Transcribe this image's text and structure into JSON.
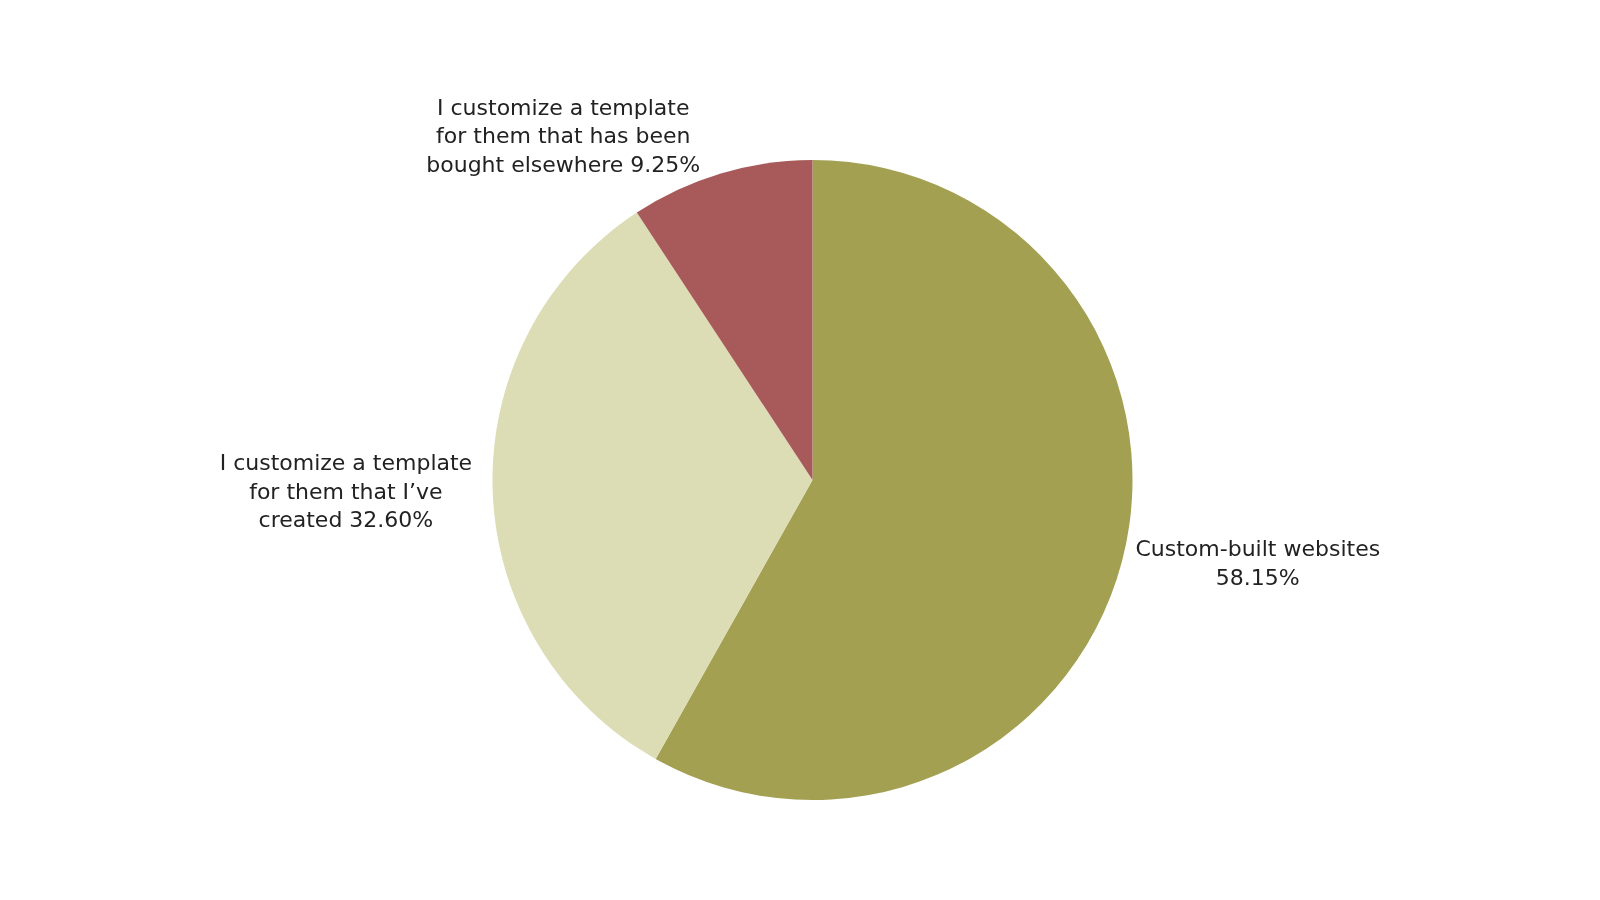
{
  "chart_data": {
    "type": "pie",
    "categories": [
      "Custom-built websites",
      "I customize a template for them that I’ve created",
      "I customize a template for them that has been bought elsewhere"
    ],
    "values": [
      58.15,
      32.6,
      9.25
    ],
    "value_labels": [
      "58.15%",
      "32.60%",
      "9.25%"
    ],
    "colors": [
      "#a3a052",
      "#dcdcb5",
      "#a85a5a"
    ],
    "legend": false
  }
}
